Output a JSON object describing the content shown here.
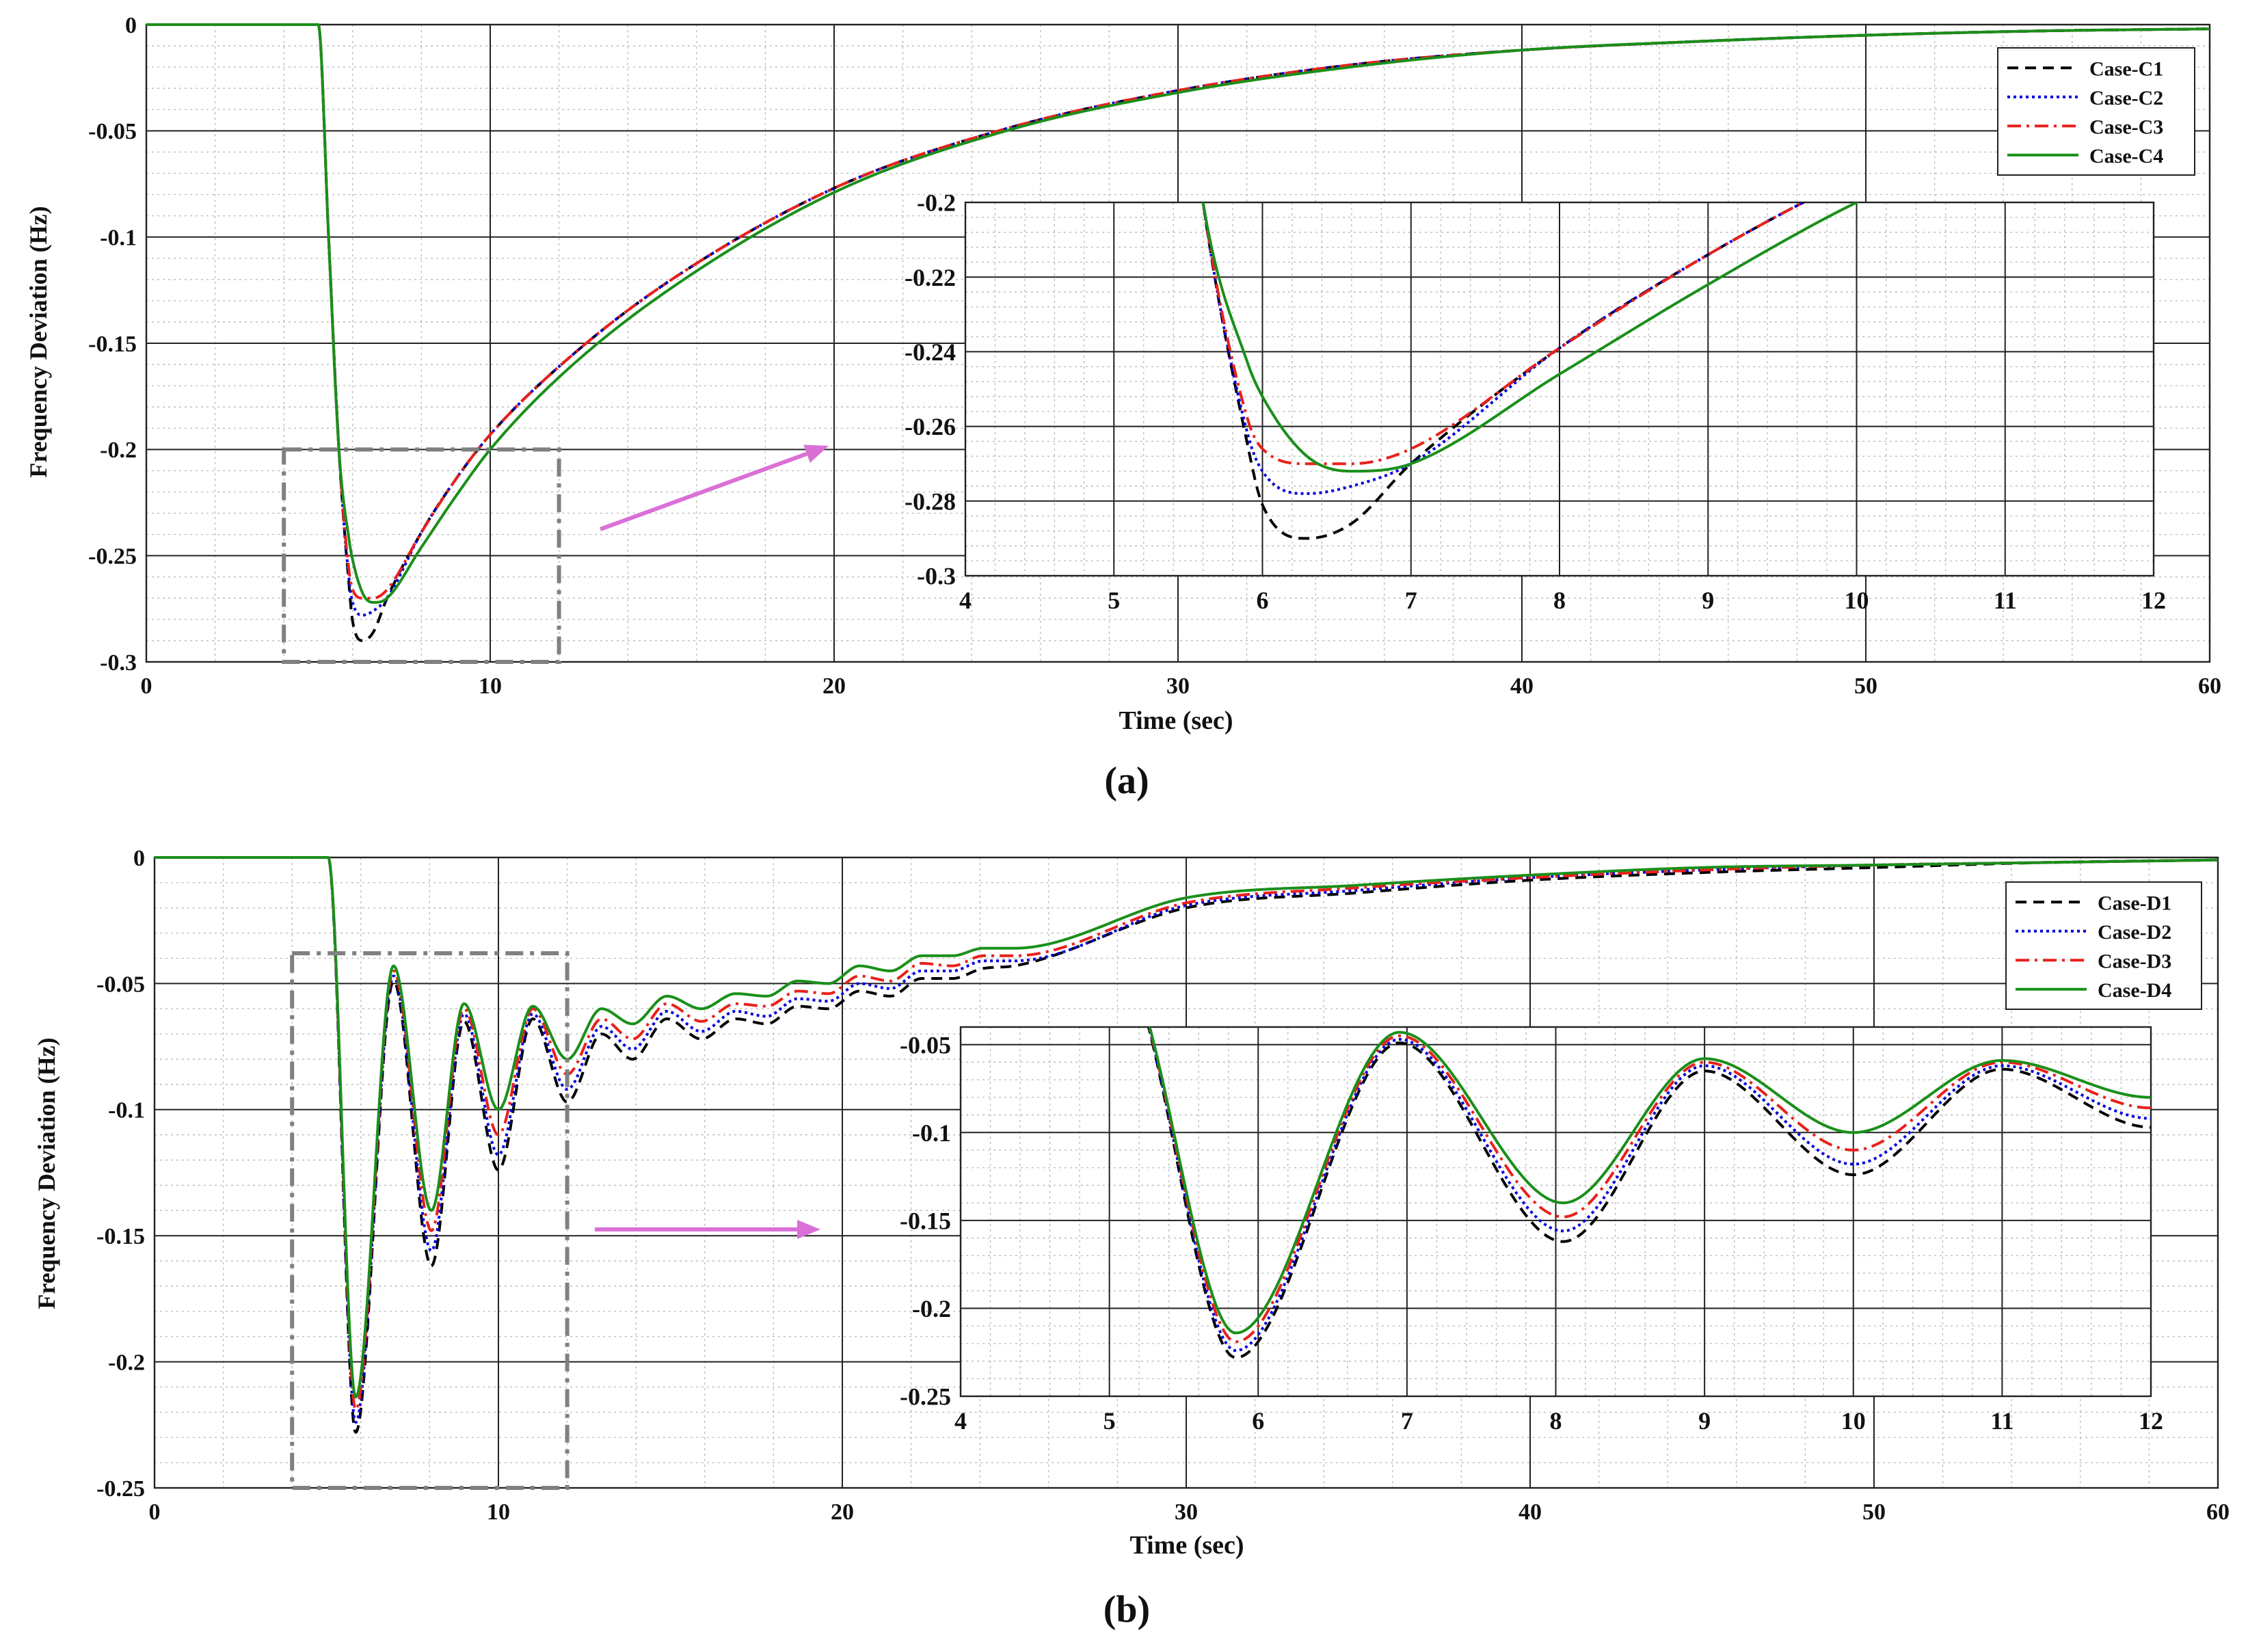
{
  "panels": [
    {
      "caption": "(a)",
      "colors": {
        "grid": "#000000",
        "minor_grid": "#aaaaaa",
        "box": "#808080",
        "arrow": "#da70d6"
      },
      "chart_data": {
        "type": "line",
        "xlabel": "Time (sec)",
        "ylabel": "Frequency Deviation (Hz)",
        "xlim": [
          0,
          60
        ],
        "ylim": [
          -0.3,
          0
        ],
        "xticks": [
          0,
          10,
          20,
          30,
          40,
          50,
          60
        ],
        "yticks": [
          0,
          -0.05,
          -0.1,
          -0.15,
          -0.2,
          -0.25,
          -0.3
        ],
        "ytick_labels": [
          "0",
          "-0.05",
          "-0.1",
          "-0.15",
          "-0.2",
          "-0.25",
          "-0.3"
        ],
        "grid": true,
        "legend_position": "top-right",
        "series": [
          {
            "name": "Case-C1",
            "color": "#000000",
            "dash": "dashed",
            "x": [
              0,
              5,
              5.3,
              5.6,
              5.9,
              6.0,
              6.3,
              6.6,
              7.0,
              8,
              9,
              10,
              12,
              15,
              20,
              25,
              30,
              35,
              40,
              45,
              50,
              55,
              60
            ],
            "y": [
              0,
              0,
              -0.1,
              -0.2,
              -0.265,
              -0.281,
              -0.29,
              -0.286,
              -0.27,
              -0.239,
              -0.214,
              -0.193,
              -0.161,
              -0.123,
              -0.077,
              -0.049,
              -0.031,
              -0.019,
              -0.012,
              -0.008,
              -0.005,
              -0.003,
              -0.002
            ]
          },
          {
            "name": "Case-C2",
            "color": "#0000dd",
            "dash": "dotted",
            "x": [
              0,
              5,
              5.3,
              5.6,
              5.9,
              6.0,
              6.3,
              6.6,
              7.0,
              8,
              9,
              10,
              12,
              15,
              20,
              25,
              30,
              35,
              40,
              45,
              50,
              55,
              60
            ],
            "y": [
              0,
              0,
              -0.1,
              -0.2,
              -0.262,
              -0.272,
              -0.278,
              -0.276,
              -0.27,
              -0.239,
              -0.214,
              -0.193,
              -0.161,
              -0.123,
              -0.077,
              -0.049,
              -0.031,
              -0.019,
              -0.012,
              -0.008,
              -0.005,
              -0.003,
              -0.002
            ]
          },
          {
            "name": "Case-C3",
            "color": "#e8211b",
            "dash": "dashdot",
            "x": [
              0,
              5,
              5.3,
              5.6,
              5.9,
              6.0,
              6.3,
              6.6,
              7.0,
              8,
              9,
              10,
              12,
              15,
              20,
              25,
              30,
              35,
              40,
              45,
              50,
              55,
              60
            ],
            "y": [
              0,
              0,
              -0.1,
              -0.2,
              -0.258,
              -0.266,
              -0.27,
              -0.27,
              -0.266,
              -0.239,
              -0.214,
              -0.193,
              -0.161,
              -0.123,
              -0.077,
              -0.049,
              -0.031,
              -0.019,
              -0.012,
              -0.008,
              -0.005,
              -0.003,
              -0.002
            ]
          },
          {
            "name": "Case-C4",
            "color": "#1a8f1a",
            "dash": "solid",
            "x": [
              0,
              5,
              5.3,
              5.6,
              5.9,
              6.0,
              6.3,
              6.6,
              7.0,
              8,
              9,
              10,
              12,
              15,
              20,
              25,
              30,
              35,
              40,
              45,
              50,
              55,
              60
            ],
            "y": [
              0,
              0,
              -0.1,
              -0.2,
              -0.243,
              -0.252,
              -0.268,
              -0.272,
              -0.27,
              -0.246,
              -0.222,
              -0.2,
              -0.166,
              -0.127,
              -0.079,
              -0.05,
              -0.032,
              -0.02,
              -0.012,
              -0.008,
              -0.005,
              -0.003,
              -0.002
            ]
          }
        ],
        "inset": {
          "xlim": [
            4,
            12
          ],
          "ylim": [
            -0.3,
            -0.2
          ],
          "xticks": [
            4,
            5,
            6,
            7,
            8,
            9,
            10,
            11,
            12
          ],
          "yticks": [
            -0.2,
            -0.22,
            -0.24,
            -0.26,
            -0.28,
            -0.3
          ],
          "ytick_labels": [
            "-0.2",
            "-0.22",
            "-0.24",
            "-0.26",
            "-0.28",
            "-0.3"
          ]
        },
        "zoom_box": {
          "xlim": [
            4,
            12
          ],
          "ylim": [
            -0.3,
            -0.2
          ]
        }
      }
    },
    {
      "caption": "(b)",
      "colors": {
        "grid": "#000000",
        "minor_grid": "#aaaaaa",
        "box": "#808080",
        "arrow": "#da70d6"
      },
      "chart_data": {
        "type": "line",
        "xlabel": "Time (sec)",
        "ylabel": "Frequency Deviation (Hz)",
        "xlim": [
          0,
          60
        ],
        "ylim": [
          -0.25,
          0
        ],
        "xticks": [
          0,
          10,
          20,
          30,
          40,
          50,
          60
        ],
        "yticks": [
          0,
          -0.05,
          -0.1,
          -0.15,
          -0.2,
          -0.25
        ],
        "ytick_labels": [
          "0",
          "-0.05",
          "-0.1",
          "-0.15",
          "-0.2",
          "-0.25"
        ],
        "grid": true,
        "legend_position": "top-right",
        "series": [
          {
            "name": "Case-D1",
            "color": "#000000",
            "dash": "dashed",
            "peaks_y": [
              -0.228,
              -0.049,
              -0.162,
              -0.065,
              -0.124,
              -0.064,
              -0.097,
              -0.07,
              -0.08,
              -0.064,
              -0.072,
              -0.064,
              -0.066,
              -0.059,
              -0.06,
              -0.053,
              -0.055,
              -0.048,
              -0.048,
              -0.044,
              -0.043
            ],
            "tail": {
              "x": [
                20,
                25,
                30,
                35,
                40,
                45,
                50,
                55,
                60
              ],
              "y": [
                -0.043,
                -0.029,
                -0.02,
                -0.014,
                -0.009,
                -0.006,
                -0.004,
                -0.002,
                -0.001
              ]
            }
          },
          {
            "name": "Case-D2",
            "color": "#0000dd",
            "dash": "dotted",
            "peaks_y": [
              -0.224,
              -0.047,
              -0.156,
              -0.062,
              -0.118,
              -0.062,
              -0.092,
              -0.067,
              -0.076,
              -0.061,
              -0.069,
              -0.061,
              -0.063,
              -0.056,
              -0.057,
              -0.05,
              -0.052,
              -0.045,
              -0.045,
              -0.041,
              -0.041
            ],
            "tail": {
              "x": [
                20,
                25,
                30,
                35,
                40,
                45,
                50,
                55,
                60
              ],
              "y": [
                -0.041,
                -0.028,
                -0.019,
                -0.013,
                -0.008,
                -0.005,
                -0.003,
                -0.002,
                -0.001
              ]
            }
          },
          {
            "name": "Case-D3",
            "color": "#e8211b",
            "dash": "dashdot",
            "peaks_y": [
              -0.219,
              -0.045,
              -0.148,
              -0.06,
              -0.11,
              -0.06,
              -0.086,
              -0.064,
              -0.072,
              -0.058,
              -0.065,
              -0.058,
              -0.059,
              -0.053,
              -0.054,
              -0.047,
              -0.049,
              -0.042,
              -0.043,
              -0.039,
              -0.039
            ],
            "tail": {
              "x": [
                20,
                25,
                30,
                35,
                40,
                45,
                50,
                55,
                60
              ],
              "y": [
                -0.039,
                -0.026,
                -0.018,
                -0.012,
                -0.008,
                -0.005,
                -0.003,
                -0.002,
                -0.001
              ]
            }
          },
          {
            "name": "Case-D4",
            "color": "#1a8f1a",
            "dash": "solid",
            "peaks_y": [
              -0.214,
              -0.043,
              -0.14,
              -0.058,
              -0.1,
              -0.059,
              -0.08,
              -0.06,
              -0.066,
              -0.055,
              -0.06,
              -0.054,
              -0.055,
              -0.049,
              -0.05,
              -0.043,
              -0.045,
              -0.039,
              -0.039,
              -0.036,
              -0.036
            ],
            "tail": {
              "x": [
                20,
                25,
                30,
                35,
                40,
                45,
                50,
                55,
                60
              ],
              "y": [
                -0.036,
                -0.024,
                -0.016,
                -0.011,
                -0.007,
                -0.004,
                -0.003,
                -0.002,
                -0.001
              ]
            }
          }
        ],
        "peaks_x": [
          5.85,
          6.95,
          8.05,
          9.0,
          10.0,
          11.0,
          12.0,
          13.0,
          13.9,
          14.9,
          15.9,
          16.9,
          17.8,
          18.7,
          19.6,
          20.5,
          21.4,
          22.3,
          23.2,
          24.1,
          25.0
        ],
        "inset": {
          "xlim": [
            4,
            12
          ],
          "ylim": [
            -0.25,
            -0.04
          ],
          "xticks": [
            4,
            5,
            6,
            7,
            8,
            9,
            10,
            11,
            12
          ],
          "yticks": [
            -0.05,
            -0.1,
            -0.15,
            -0.2,
            -0.25
          ],
          "ytick_labels": [
            "-0.05",
            "-0.1",
            "-0.15",
            "-0.2",
            "-0.25"
          ]
        },
        "zoom_box": {
          "xlim": [
            4,
            12
          ],
          "ylim": [
            -0.25,
            -0.038
          ]
        }
      }
    }
  ]
}
